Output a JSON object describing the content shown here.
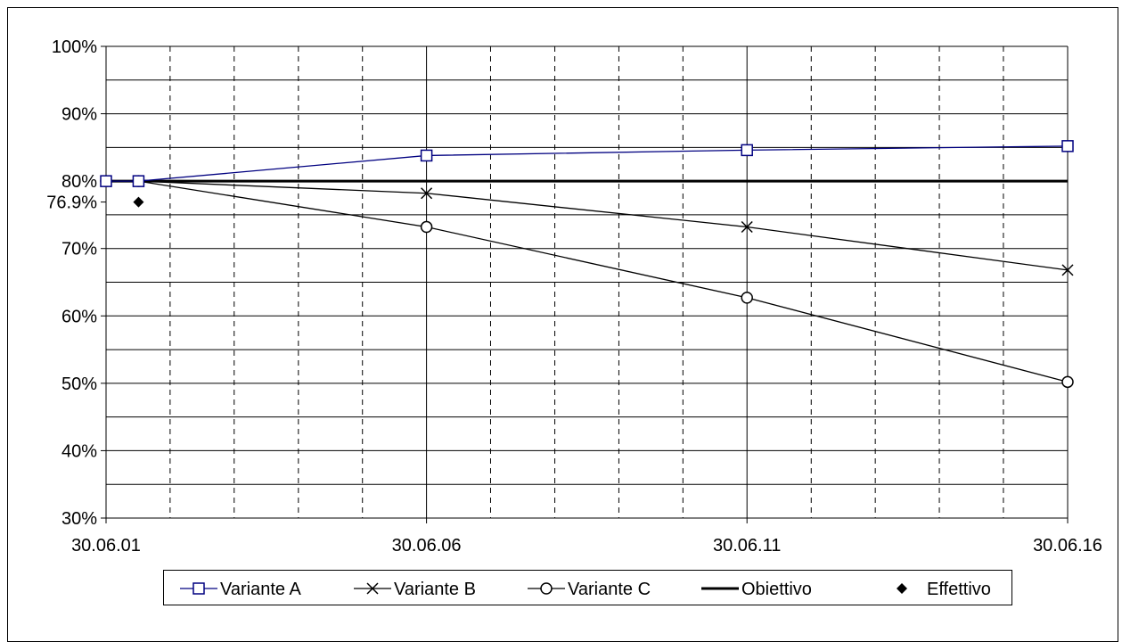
{
  "chart_data": {
    "type": "line",
    "x_ticks": [
      "30.06.01",
      "30.06.06",
      "30.06.11",
      "30.06.16"
    ],
    "y_ticks": [
      "100%",
      "90%",
      "80%",
      "76.9%",
      "70%",
      "60%",
      "50%",
      "40%",
      "30%"
    ],
    "y_tick_values": [
      100,
      90,
      80,
      76.9,
      70,
      60,
      50,
      40,
      30
    ],
    "ylim": [
      30,
      100
    ],
    "xlim": [
      "2001-06-30",
      "2016-06-30"
    ],
    "grid": "major solid horizontal and vertical, minor dashed vertical",
    "legend_position": "bottom",
    "series": [
      {
        "name": "Variante A",
        "marker": "square",
        "color": "#000080",
        "points": [
          {
            "x": "2001-06-30",
            "y": 80
          },
          {
            "x": "2002-01-01",
            "y": 80
          },
          {
            "x": "2006-06-30",
            "y": 83.8
          },
          {
            "x": "2011-06-30",
            "y": 84.6
          },
          {
            "x": "2016-06-30",
            "y": 85.2
          }
        ]
      },
      {
        "name": "Variante B",
        "marker": "x",
        "color": "#000000",
        "points": [
          {
            "x": "2001-06-30",
            "y": 80
          },
          {
            "x": "2002-01-01",
            "y": 80
          },
          {
            "x": "2006-06-30",
            "y": 78.2
          },
          {
            "x": "2011-06-30",
            "y": 73.2
          },
          {
            "x": "2016-06-30",
            "y": 66.8
          }
        ]
      },
      {
        "name": "Variante C",
        "marker": "circle",
        "color": "#000000",
        "points": [
          {
            "x": "2001-06-30",
            "y": 80
          },
          {
            "x": "2002-01-01",
            "y": 80
          },
          {
            "x": "2006-06-30",
            "y": 73.2
          },
          {
            "x": "2011-06-30",
            "y": 62.7
          },
          {
            "x": "2016-06-30",
            "y": 50.2
          }
        ]
      },
      {
        "name": "Obiettivo",
        "marker": "none",
        "color": "#000000",
        "points": [
          {
            "x": "2001-06-30",
            "y": 80
          },
          {
            "x": "2016-06-30",
            "y": 80
          }
        ]
      },
      {
        "name": "Effettivo",
        "marker": "diamond",
        "color": "#000000",
        "points": [
          {
            "x": "2002-01-01",
            "y": 76.9
          }
        ]
      }
    ]
  }
}
